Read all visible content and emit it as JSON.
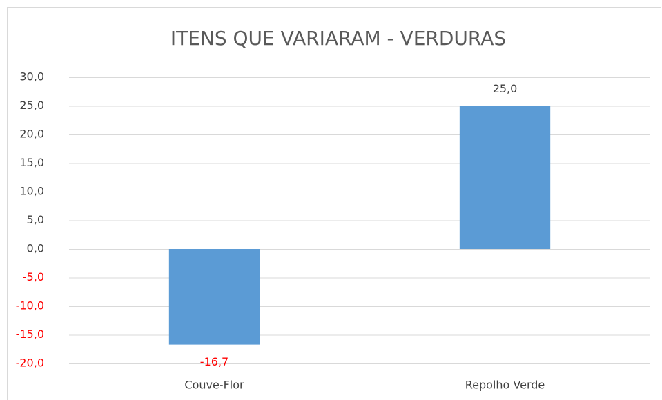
{
  "chart_data": {
    "type": "bar",
    "title": "ITENS QUE VARIARAM - VERDURAS",
    "categories": [
      "Couve-Flor",
      "Repolho Verde"
    ],
    "values": [
      -16.7,
      25.0
    ],
    "value_labels": [
      "-16,7",
      "25,0"
    ],
    "color": "#5b9bd5",
    "negative_label_color": "#ff0000",
    "ylim": [
      -20,
      30
    ],
    "yticks": [
      {
        "value": -20,
        "label": "-20,0"
      },
      {
        "value": -15,
        "label": "-15,0"
      },
      {
        "value": -10,
        "label": "-10,0"
      },
      {
        "value": -5,
        "label": "-5,0"
      },
      {
        "value": 0,
        "label": "0,0"
      },
      {
        "value": 5,
        "label": "5,0"
      },
      {
        "value": 10,
        "label": "10,0"
      },
      {
        "value": 15,
        "label": "15,0"
      },
      {
        "value": 20,
        "label": "20,0"
      },
      {
        "value": 25,
        "label": "25,0"
      },
      {
        "value": 30,
        "label": "30,0"
      }
    ],
    "grid": true
  }
}
